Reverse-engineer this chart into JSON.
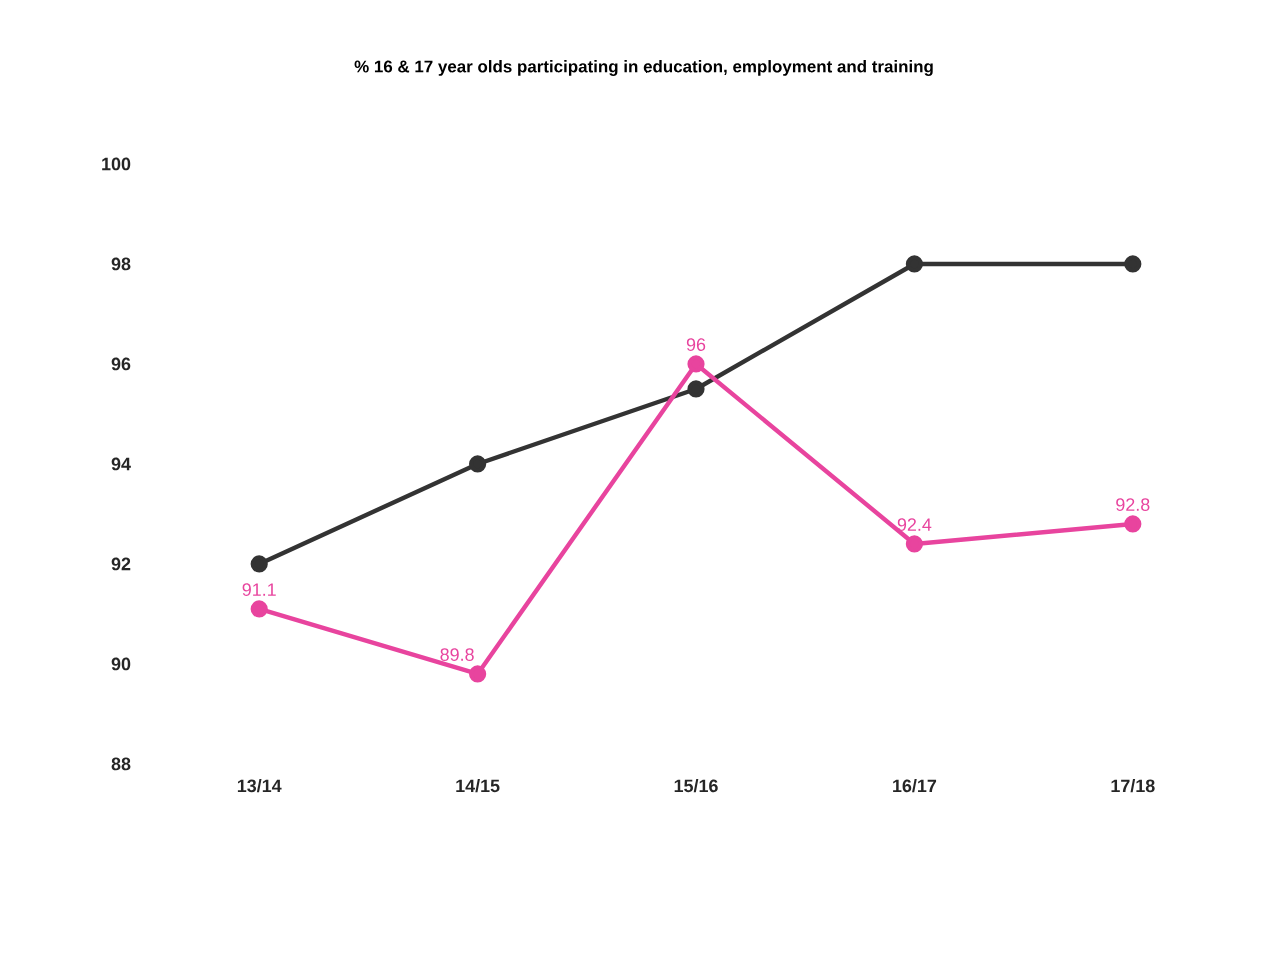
{
  "chart_data": {
    "type": "line",
    "title": "% 16 & 17 year olds participating in education, employment and training",
    "categories": [
      "13/14",
      "14/15",
      "15/16",
      "16/17",
      "17/18"
    ],
    "ylim": [
      88,
      100
    ],
    "yticks": [
      88,
      90,
      92,
      94,
      96,
      98,
      100
    ],
    "marker": "circle",
    "series": [
      {
        "color": "#333333",
        "values": [
          92,
          94,
          95.5,
          98,
          98
        ]
      },
      {
        "color": "#e8449e",
        "values": [
          91.1,
          89.8,
          96,
          92.4,
          92.8
        ],
        "value_labels": [
          "91.1",
          "89.8",
          "96",
          "92.4",
          "92.8"
        ]
      }
    ]
  }
}
